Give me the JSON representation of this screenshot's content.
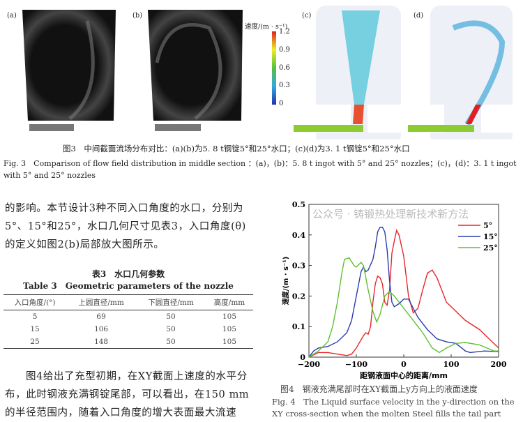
{
  "figure3": {
    "panels": [
      "(a)",
      "(b)",
      "(c)",
      "(d)"
    ],
    "colorbar": {
      "title": "速度/(m · s⁻¹)",
      "ticks": [
        "1.2",
        "0.9",
        "0.6",
        "0.3",
        "0"
      ]
    },
    "caption_cn": "图3　中间截面流场分布对比：(a)(b)为5. 8 t钢锭5°和25°水口；(c)(d)为3. 1 t钢锭5°和25°水口",
    "caption_en_1": "Fig. 3　Comparison of flow field distribution in middle section ：(a)，(b)：5. 8 t ingot with 5° and 25° nozzles；(c)，(d)：3. 1 t ingot",
    "caption_en_2": "with 5° and 25° nozzles"
  },
  "paragraph1": "的影响。本节设计3种不同入口角度的水口，分别为5°、15°和25°，水口几何尺寸见表3，入口角度(θ)的定义如图2(b)局部放大图所示。",
  "table3": {
    "title_cn": "表3　水口几何参数",
    "title_en": "Table 3　Geometric parameters of the nozzle",
    "headers": [
      "入口角度/(°)",
      "上圆直径/mm",
      "下圆直径/mm",
      "高度/mm"
    ],
    "rows": [
      [
        "5",
        "69",
        "50",
        "105"
      ],
      [
        "15",
        "106",
        "50",
        "105"
      ],
      [
        "25",
        "148",
        "50",
        "105"
      ]
    ]
  },
  "paragraph2": "图4给出了充型初期，在XY截面上速度的水平分布，此时钢液充满钢锭尾部，可以看出，在150 mm的半径范围内，随着入口角度的增大表面最大流速",
  "figure4": {
    "caption_cn": "图4　钢液充满尾部时在XY截面上y方向上的液面速度",
    "caption_en_1": "Fig. 4　The Liquid surface velocity in the y-direction on the",
    "caption_en_2": "XY cross-section when the molten Steel fills the tail part"
  },
  "watermark": "公众号 · 铸锻热处理新技术新方法",
  "chart_data": {
    "type": "line",
    "xlabel": "距钢液面中心的距离/mm",
    "ylabel": "速度/(m · s⁻¹)",
    "xlim": [
      -200,
      200
    ],
    "ylim": [
      0,
      0.5
    ],
    "xticks": [
      "-200",
      "-100",
      "0",
      "100",
      "200"
    ],
    "yticks": [
      "0",
      "0.1",
      "0.2",
      "0.3",
      "0.4",
      "0.5"
    ],
    "legend": "top-right",
    "series": [
      {
        "name": "5°",
        "color": "#e8262a",
        "points": [
          [
            -200,
            0
          ],
          [
            -180,
            0.015
          ],
          [
            -160,
            0.015
          ],
          [
            -120,
            0.005
          ],
          [
            -110,
            0.01
          ],
          [
            -100,
            0.03
          ],
          [
            -85,
            0.07
          ],
          [
            -80,
            0.08
          ],
          [
            -75,
            0.075
          ],
          [
            -70,
            0.1
          ],
          [
            -65,
            0.18
          ],
          [
            -60,
            0.24
          ],
          [
            -55,
            0.265
          ],
          [
            -50,
            0.26
          ],
          [
            -45,
            0.24
          ],
          [
            -40,
            0.18
          ],
          [
            -35,
            0.17
          ],
          [
            -30,
            0.22
          ],
          [
            -25,
            0.34
          ],
          [
            -20,
            0.38
          ],
          [
            -15,
            0.415
          ],
          [
            -10,
            0.4
          ],
          [
            0,
            0.33
          ],
          [
            10,
            0.2
          ],
          [
            20,
            0.145
          ],
          [
            30,
            0.16
          ],
          [
            40,
            0.22
          ],
          [
            50,
            0.275
          ],
          [
            60,
            0.285
          ],
          [
            70,
            0.26
          ],
          [
            80,
            0.22
          ],
          [
            90,
            0.18
          ],
          [
            110,
            0.15
          ],
          [
            130,
            0.12
          ],
          [
            160,
            0.09
          ],
          [
            180,
            0.06
          ],
          [
            200,
            0.03
          ]
        ]
      },
      {
        "name": "15°",
        "color": "#2a3cb0",
        "points": [
          [
            -200,
            0
          ],
          [
            -190,
            0.02
          ],
          [
            -180,
            0.03
          ],
          [
            -160,
            0.035
          ],
          [
            -140,
            0.05
          ],
          [
            -120,
            0.08
          ],
          [
            -110,
            0.12
          ],
          [
            -100,
            0.2
          ],
          [
            -90,
            0.28
          ],
          [
            -85,
            0.295
          ],
          [
            -80,
            0.28
          ],
          [
            -75,
            0.285
          ],
          [
            -65,
            0.32
          ],
          [
            -60,
            0.36
          ],
          [
            -55,
            0.41
          ],
          [
            -50,
            0.425
          ],
          [
            -45,
            0.425
          ],
          [
            -40,
            0.41
          ],
          [
            -35,
            0.35
          ],
          [
            -30,
            0.25
          ],
          [
            -25,
            0.18
          ],
          [
            -20,
            0.165
          ],
          [
            -10,
            0.175
          ],
          [
            0,
            0.19
          ],
          [
            10,
            0.19
          ],
          [
            20,
            0.16
          ],
          [
            30,
            0.13
          ],
          [
            50,
            0.09
          ],
          [
            70,
            0.06
          ],
          [
            90,
            0.05
          ],
          [
            110,
            0.045
          ],
          [
            130,
            0.02
          ],
          [
            140,
            0.015
          ],
          [
            170,
            0.02
          ],
          [
            200,
            0.018
          ]
        ]
      },
      {
        "name": "25°",
        "color": "#5ec02e",
        "points": [
          [
            -200,
            0
          ],
          [
            -180,
            0.02
          ],
          [
            -160,
            0.05
          ],
          [
            -150,
            0.1
          ],
          [
            -140,
            0.18
          ],
          [
            -130,
            0.28
          ],
          [
            -125,
            0.32
          ],
          [
            -115,
            0.325
          ],
          [
            -105,
            0.3
          ],
          [
            -100,
            0.295
          ],
          [
            -90,
            0.31
          ],
          [
            -85,
            0.3
          ],
          [
            -75,
            0.22
          ],
          [
            -65,
            0.15
          ],
          [
            -57,
            0.115
          ],
          [
            -50,
            0.14
          ],
          [
            -40,
            0.2
          ],
          [
            -30,
            0.215
          ],
          [
            -20,
            0.2
          ],
          [
            0,
            0.16
          ],
          [
            20,
            0.12
          ],
          [
            40,
            0.08
          ],
          [
            60,
            0.03
          ],
          [
            75,
            0.015
          ],
          [
            90,
            0.03
          ],
          [
            110,
            0.045
          ],
          [
            130,
            0.048
          ],
          [
            160,
            0.04
          ],
          [
            190,
            0.02
          ],
          [
            200,
            0.02
          ]
        ]
      }
    ]
  }
}
